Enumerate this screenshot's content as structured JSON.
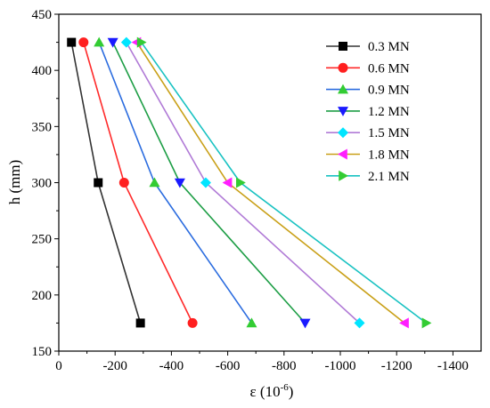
{
  "chart_data": {
    "type": "line",
    "xlabel": "ε (10",
    "xlabel_exp": "-6",
    "xlabel_close": ")",
    "ylabel": "h (mm)",
    "xlim": [
      0,
      -1500
    ],
    "ylim": [
      150,
      450
    ],
    "x_ticks": [
      0,
      -200,
      -400,
      -600,
      -800,
      -1000,
      -1200,
      -1400
    ],
    "x_tick_labels": [
      "0",
      "-200",
      "-400",
      "-600",
      "-800",
      "-1000",
      "-1200",
      "-1400"
    ],
    "y_ticks": [
      150,
      200,
      250,
      300,
      350,
      400,
      450
    ],
    "y_tick_labels": [
      "150",
      "200",
      "250",
      "300",
      "350",
      "400",
      "450"
    ],
    "legend_position": "top-right",
    "series": [
      {
        "name": "0.3 MN",
        "color": "#333333",
        "marker": "square",
        "points": [
          [
            -45,
            425
          ],
          [
            -140,
            300
          ],
          [
            -290,
            175
          ]
        ]
      },
      {
        "name": "0.6 MN",
        "color": "#ff2a2a",
        "marker": "circle",
        "points": [
          [
            -88,
            425
          ],
          [
            -232,
            300
          ],
          [
            -475,
            175
          ]
        ]
      },
      {
        "name": "0.9 MN",
        "color": "#2b6cdf",
        "marker": "triangle-up",
        "points": [
          [
            -143,
            425
          ],
          [
            -340,
            300
          ],
          [
            -685,
            175
          ]
        ]
      },
      {
        "name": "1.2 MN",
        "color": "#1e9e46",
        "marker": "triangle-down",
        "points": [
          [
            -192,
            425
          ],
          [
            -430,
            300
          ],
          [
            -875,
            175
          ]
        ]
      },
      {
        "name": "1.5 MN",
        "color": "#b07ad6",
        "marker": "diamond",
        "points": [
          [
            -240,
            425
          ],
          [
            -522,
            300
          ],
          [
            -1068,
            175
          ]
        ]
      },
      {
        "name": "1.8 MN",
        "color": "#c9a018",
        "marker": "triangle-left",
        "points": [
          [
            -277,
            425
          ],
          [
            -600,
            300
          ],
          [
            -1228,
            175
          ]
        ]
      },
      {
        "name": "2.1 MN",
        "color": "#19c2c2",
        "marker": "triangle-right",
        "points": [
          [
            -293,
            425
          ],
          [
            -645,
            300
          ],
          [
            -1305,
            175
          ]
        ]
      }
    ],
    "marker_colors": {
      "square": "#000000",
      "circle": "#ff1f1f",
      "triangle-up": "#33cc33",
      "triangle-down": "#1a1aff",
      "diamond": "#00e5ff",
      "triangle-left": "#ff1fff",
      "triangle-right": "#33cc33"
    }
  }
}
